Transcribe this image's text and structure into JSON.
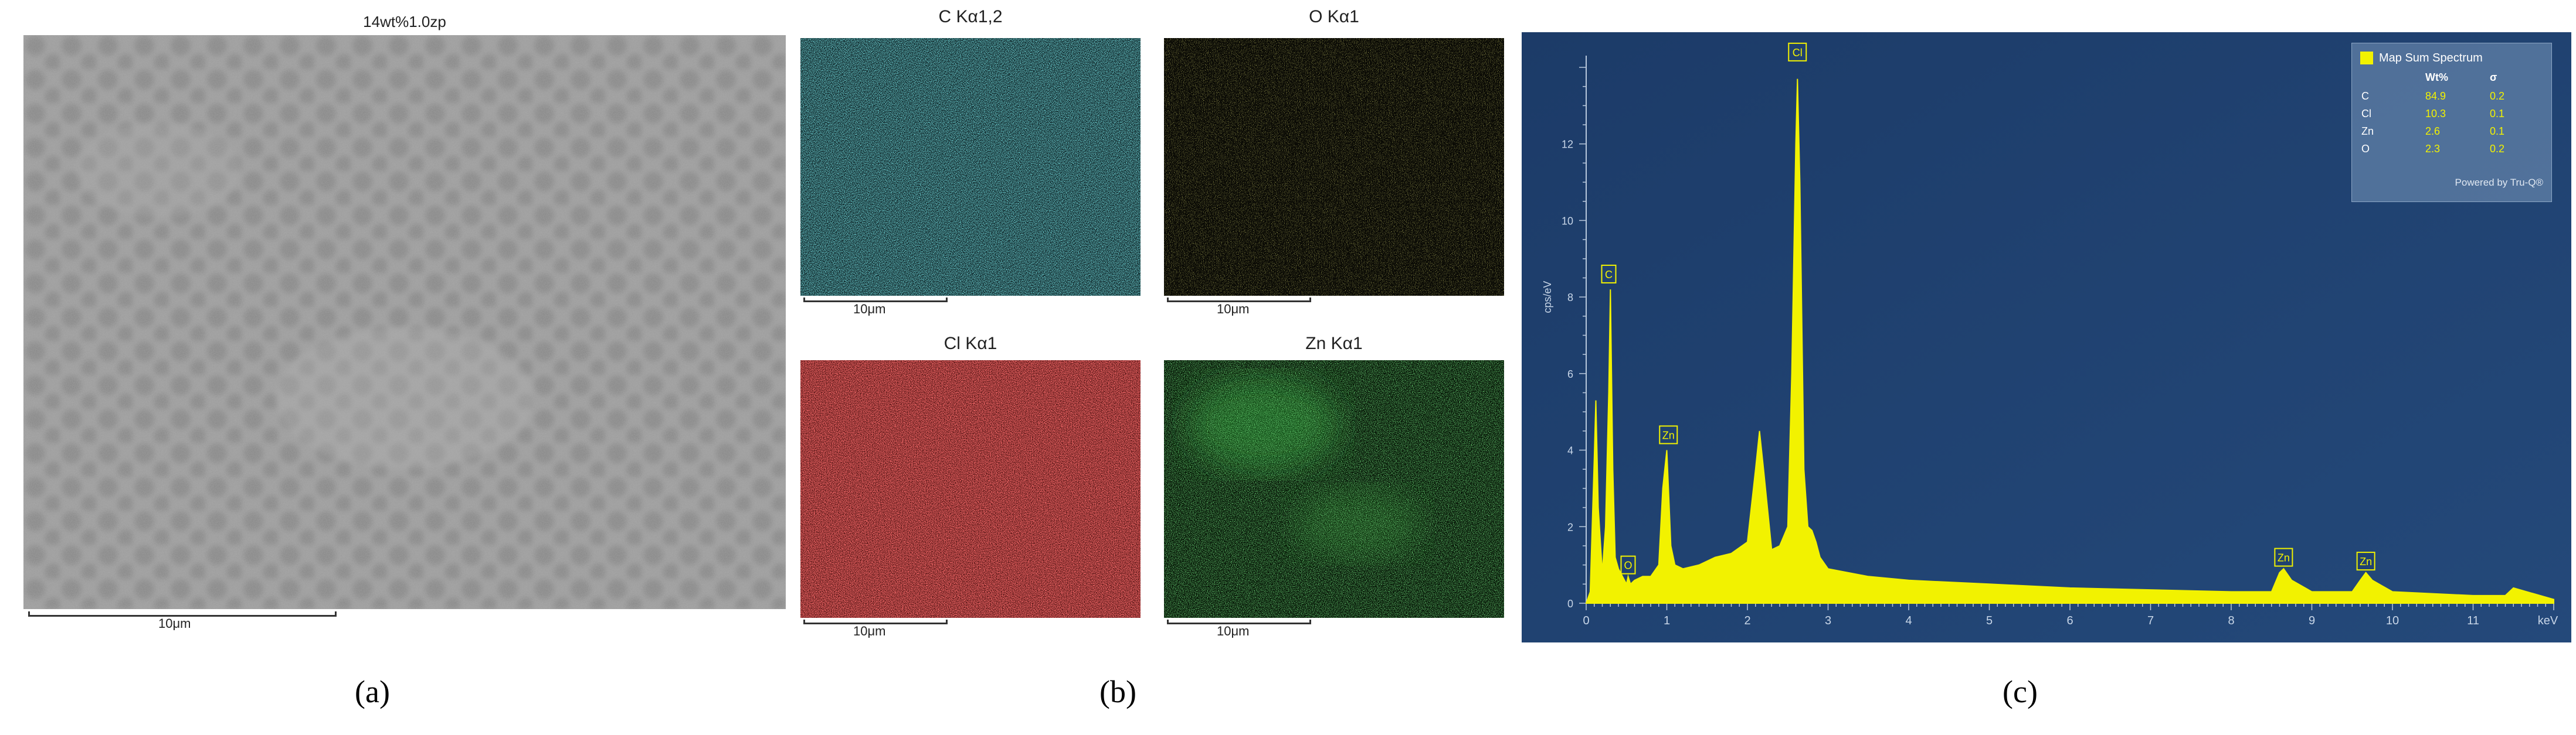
{
  "panel_a": {
    "title": "14wt%1.0zp",
    "scalebar": "10μm",
    "caption": "(a)"
  },
  "panel_b": {
    "maps": [
      {
        "title": "C Kα1,2",
        "scalebar": "10μm",
        "color": "#35c8cc"
      },
      {
        "title": "O Kα1",
        "scalebar": "10μm",
        "color": "#d9d633"
      },
      {
        "title": "Cl Kα1",
        "scalebar": "10μm",
        "color": "#e42222"
      },
      {
        "title": "Zn Kα1",
        "scalebar": "10μm",
        "color": "#33c840"
      }
    ],
    "caption": "(b)"
  },
  "panel_c": {
    "caption": "(c)",
    "background": "#1f4170",
    "ylabel": "cps/eV",
    "xunit": "keV",
    "legend": {
      "title": "Map Sum Spectrum",
      "headers": [
        "Wt%",
        "σ"
      ],
      "rows": [
        {
          "el": "C",
          "wt": "84.9",
          "sigma": "0.2"
        },
        {
          "el": "Cl",
          "wt": "10.3",
          "sigma": "0.1"
        },
        {
          "el": "Zn",
          "wt": "2.6",
          "sigma": "0.1"
        },
        {
          "el": "O",
          "wt": "2.3",
          "sigma": "0.2"
        }
      ],
      "footer": "Powered by Tru-Q®"
    }
  },
  "chart_data": {
    "type": "area",
    "xlabel": "keV",
    "ylabel": "cps/eV",
    "xlim": [
      0,
      12
    ],
    "ylim": [
      0,
      14
    ],
    "x_ticks": [
      0,
      1,
      2,
      3,
      4,
      5,
      6,
      7,
      8,
      9,
      10,
      11
    ],
    "y_ticks": [
      0,
      2,
      4,
      6,
      8,
      10,
      12
    ],
    "series": [
      {
        "name": "Map Sum Spectrum",
        "color": "#f2f200",
        "x": [
          0.0,
          0.05,
          0.1,
          0.12,
          0.15,
          0.2,
          0.24,
          0.28,
          0.3,
          0.33,
          0.36,
          0.4,
          0.45,
          0.5,
          0.52,
          0.55,
          0.6,
          0.7,
          0.8,
          0.9,
          0.95,
          1.0,
          1.02,
          1.05,
          1.1,
          1.2,
          1.4,
          1.6,
          1.8,
          2.0,
          2.1,
          2.15,
          2.2,
          2.3,
          2.4,
          2.5,
          2.55,
          2.6,
          2.62,
          2.65,
          2.7,
          2.75,
          2.8,
          2.85,
          2.9,
          3.0,
          3.5,
          4.0,
          5.0,
          6.0,
          7.0,
          8.0,
          8.5,
          8.6,
          8.65,
          8.75,
          9.0,
          9.5,
          9.6,
          9.67,
          9.75,
          10.0,
          11.0,
          11.4,
          11.5,
          12.0
        ],
        "y": [
          0.0,
          0.3,
          3.8,
          5.3,
          2.5,
          0.8,
          2.0,
          5.5,
          8.2,
          3.5,
          1.2,
          0.9,
          0.7,
          0.5,
          0.7,
          0.5,
          0.6,
          0.7,
          0.7,
          1.0,
          3.0,
          4.0,
          3.0,
          1.5,
          1.0,
          0.9,
          1.0,
          1.2,
          1.3,
          1.6,
          3.5,
          4.5,
          3.5,
          1.4,
          1.5,
          2.0,
          6.0,
          12.0,
          13.7,
          11.0,
          3.5,
          2.0,
          1.9,
          1.6,
          1.2,
          0.9,
          0.7,
          0.6,
          0.5,
          0.4,
          0.35,
          0.3,
          0.3,
          0.8,
          0.9,
          0.6,
          0.3,
          0.3,
          0.6,
          0.8,
          0.6,
          0.3,
          0.2,
          0.2,
          0.4,
          0.1
        ]
      }
    ],
    "annotations": [
      {
        "label": "C",
        "x": 0.28,
        "y": 8.6
      },
      {
        "label": "O",
        "x": 0.52,
        "y": 1.0
      },
      {
        "label": "Zn",
        "x": 1.02,
        "y": 4.4
      },
      {
        "label": "Cl",
        "x": 2.62,
        "y": 14.4
      },
      {
        "label": "Zn",
        "x": 8.65,
        "y": 1.2
      },
      {
        "label": "Zn",
        "x": 9.67,
        "y": 1.1
      }
    ]
  }
}
